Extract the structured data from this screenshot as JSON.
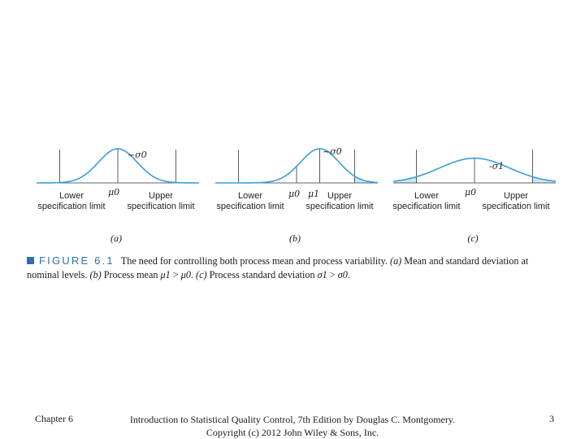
{
  "figure": {
    "panels": [
      {
        "id": "a",
        "label": "(a)",
        "lower_spec": "Lower specification limit",
        "upper_spec": "Upper specification limit",
        "mean_labels": [
          "μ0"
        ],
        "sigma_label": "σ0",
        "curve": {
          "mean": 0,
          "sd": 1.0
        },
        "spec_limits": [
          -3,
          3
        ],
        "mean_shift": null
      },
      {
        "id": "b",
        "label": "(b)",
        "lower_spec": "Lower specification limit",
        "upper_spec": "Upper specification limit",
        "mean_labels": [
          "μ0",
          "μ1"
        ],
        "sigma_label": "σ0",
        "curve": {
          "mean": 1.2,
          "sd": 1.0
        },
        "spec_limits": [
          -3,
          3
        ],
        "mean_shift": 1.2
      },
      {
        "id": "c",
        "label": "(c)",
        "lower_spec": "Lower specification limit",
        "upper_spec": "Upper specification limit",
        "mean_labels": [
          "μ0"
        ],
        "sigma_label": "σ1",
        "curve": {
          "mean": 0,
          "sd": 1.8
        },
        "spec_limits": [
          -3,
          3
        ],
        "mean_shift": null
      }
    ],
    "caption": {
      "label": "FIGURE 6.1",
      "text_1": "The need for controlling both process mean and process variability. ",
      "a_tag": "(a)",
      "text_2": " Mean and standard deviation at nominal levels. ",
      "b_tag": "(b)",
      "text_3": " Process mean ",
      "mu1": "μ1",
      "gt": " > ",
      "mu0": "μ0",
      "text_4": ". ",
      "c_tag": "(c)",
      "text_5": " Process standard deviation ",
      "sigma1": "σ1",
      "sigma0": "σ0",
      "text_6": "."
    },
    "colors": {
      "curve": "#3a9fd8",
      "tail_fill": "#cfe6f5",
      "axis": "#333333",
      "accent": "#2f6fb0"
    }
  },
  "footer": {
    "chapter": "Chapter 6",
    "book_line1": "Introduction to Statistical Quality Control, 7th Edition by Douglas C. Montgomery.",
    "book_line2": "Copyright (c) 2012  John Wiley & Sons, Inc.",
    "page": "3"
  }
}
